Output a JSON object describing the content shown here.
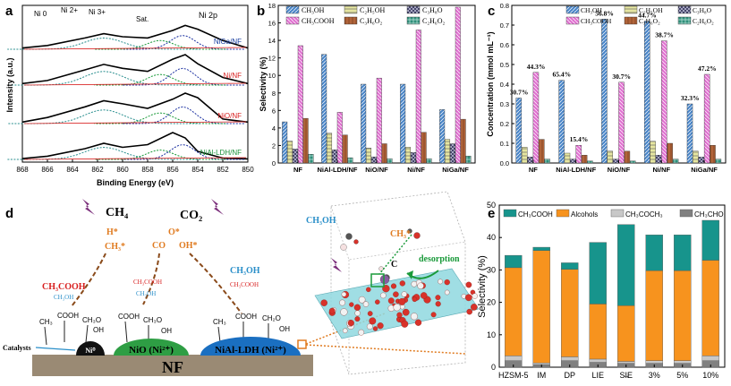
{
  "panel_labels": {
    "a": "a",
    "b": "b",
    "c": "c",
    "d": "d",
    "e": "e"
  },
  "colors": {
    "CH3OH": "#4a86c8",
    "C2H5OH": "#e6e6a0",
    "C3H8O": "#33335a",
    "CH3COOH": "#e070d0",
    "C3H6O2": "#b0643a",
    "C2H6O2": "#2f8f7a",
    "e_CH3COOH": "#17948c",
    "e_Alcohols": "#f7931e",
    "e_CH3COCH3": "#c8c8c8",
    "e_CH3CHO": "#808080",
    "nf_base": "#9a8a74",
    "ni0": "#111111",
    "nio": "#2e9e44",
    "nial": "#1a6fc1",
    "methane_orange": "#e07b20",
    "red_text": "#d81e1e",
    "blue_text": "#2a8fc9"
  },
  "chart_data": [
    {
      "id": "a",
      "type": "line",
      "title": "Ni 2p",
      "xlabel": "Binding Energy (eV)",
      "ylabel": "Intensity (a.u.)",
      "xlim": [
        868,
        850
      ],
      "xticks": [
        850,
        852,
        854,
        856,
        858,
        860,
        862,
        864,
        866,
        868
      ],
      "peak_labels": [
        "Ni 0",
        "Ni 2+",
        "Ni 3+",
        "Sat."
      ],
      "series": [
        {
          "name": "NiGa/NF",
          "x": [
            850,
            852,
            854,
            855,
            856,
            858,
            860,
            861.5,
            863,
            866,
            868
          ],
          "values": [
            0.05,
            0.35,
            0.8,
            0.95,
            0.75,
            0.45,
            0.5,
            0.62,
            0.45,
            0.15,
            0.05
          ]
        },
        {
          "name": "Ni/NF",
          "x": [
            850,
            852,
            854,
            855,
            856,
            858,
            860,
            861.5,
            863,
            866,
            868
          ],
          "values": [
            0.05,
            0.25,
            0.7,
            1.0,
            0.85,
            0.45,
            0.55,
            0.68,
            0.5,
            0.15,
            0.05
          ]
        },
        {
          "name": "NiO/NF",
          "x": [
            850,
            852,
            854,
            855,
            856,
            858,
            860,
            861.5,
            863,
            866,
            868
          ],
          "values": [
            0.05,
            0.15,
            0.85,
            1.0,
            0.8,
            0.5,
            0.65,
            0.75,
            0.55,
            0.2,
            0.05
          ]
        },
        {
          "name": "NiAl-LDH/NF",
          "x": [
            850,
            852,
            854,
            855,
            856,
            858,
            860,
            861.5,
            863,
            866,
            868
          ],
          "values": [
            0.02,
            0.05,
            0.3,
            0.8,
            1.0,
            0.55,
            0.45,
            0.6,
            0.4,
            0.12,
            0.03
          ]
        }
      ]
    },
    {
      "id": "b",
      "type": "bar",
      "ylabel": "Selectivity (%)",
      "ylim": [
        0,
        18
      ],
      "yticks": [
        0,
        2,
        4,
        6,
        8,
        10,
        12,
        14,
        16,
        18
      ],
      "categories": [
        "NF",
        "NiAl-LDH/NF",
        "NiO/NF",
        "Ni/NF",
        "NiGa/NF"
      ],
      "series": [
        {
          "name": "CH3OH",
          "label": "CH₃OH",
          "values": [
            4.7,
            12.4,
            9.0,
            9.0,
            6.1
          ]
        },
        {
          "name": "C2H5OH",
          "label": "C₂H₅OH",
          "values": [
            2.5,
            3.4,
            1.7,
            1.8,
            2.7
          ]
        },
        {
          "name": "C3H8O",
          "label": "C₃H₈O",
          "values": [
            1.6,
            1.5,
            0.7,
            1.2,
            2.2
          ]
        },
        {
          "name": "CH3COOH",
          "label": "CH₃COOH",
          "values": [
            13.4,
            5.8,
            9.7,
            15.2,
            17.8
          ]
        },
        {
          "name": "C3H6O2",
          "label": "C₃H₆O₂",
          "values": [
            5.1,
            3.2,
            2.2,
            3.5,
            5.0
          ]
        },
        {
          "name": "C2H6O2",
          "label": "C₂H₆O₂",
          "values": [
            1.0,
            0.6,
            0.5,
            0.5,
            0.8
          ]
        }
      ]
    },
    {
      "id": "c",
      "type": "bar",
      "ylabel": "Concentration (mmol mL⁻¹)",
      "ylim": [
        0.0,
        0.8
      ],
      "yticks": [
        0.0,
        0.1,
        0.2,
        0.3,
        0.4,
        0.5,
        0.6,
        0.7,
        0.8
      ],
      "categories": [
        "NF",
        "NiAl-LDH/NF",
        "NiO/NF",
        "Ni/NF",
        "NiGa/NF"
      ],
      "series": [
        {
          "name": "CH3OH",
          "label": "CH₃OH",
          "values": [
            0.33,
            0.42,
            0.73,
            0.72,
            0.3
          ]
        },
        {
          "name": "C2H5OH",
          "label": "C₂H₅OH",
          "values": [
            0.08,
            0.05,
            0.06,
            0.11,
            0.06
          ]
        },
        {
          "name": "C3H8O",
          "label": "C₃H₈O",
          "values": [
            0.03,
            0.02,
            0.02,
            0.04,
            0.03
          ]
        },
        {
          "name": "CH3COOH",
          "label": "CH₃COOH",
          "values": [
            0.46,
            0.09,
            0.41,
            0.62,
            0.45
          ]
        },
        {
          "name": "C3H6O2",
          "label": "C₃H₆O₂",
          "values": [
            0.12,
            0.04,
            0.06,
            0.1,
            0.09
          ]
        },
        {
          "name": "C2H6O2",
          "label": "C₂H₆O₂",
          "values": [
            0.02,
            0.01,
            0.01,
            0.02,
            0.02
          ]
        }
      ],
      "annotations": [
        {
          "text": "30.7%",
          "category": "NF",
          "series": "CH3OH"
        },
        {
          "text": "44.3%",
          "category": "NF",
          "series": "CH3COOH"
        },
        {
          "text": "65.4%",
          "category": "NiAl-LDH/NF",
          "series": "CH3OH"
        },
        {
          "text": "15.4%",
          "category": "NiAl-LDH/NF",
          "series": "CH3COOH"
        },
        {
          "text": "56.8%",
          "category": "NiO/NF",
          "series": "CH3OH"
        },
        {
          "text": "30.7%",
          "category": "NiO/NF",
          "series": "CH3COOH"
        },
        {
          "text": "44.7%",
          "category": "Ni/NF",
          "series": "CH3OH"
        },
        {
          "text": "38.7%",
          "category": "Ni/NF",
          "series": "CH3COOH"
        },
        {
          "text": "32.3%",
          "category": "NiGa/NF",
          "series": "CH3OH"
        },
        {
          "text": "47.2%",
          "category": "NiGa/NF",
          "series": "CH3COOH"
        }
      ]
    },
    {
      "id": "e",
      "type": "bar",
      "stacked": true,
      "ylabel": "Selectivity (%)",
      "ylim": [
        0,
        50
      ],
      "yticks": [
        0,
        10,
        20,
        30,
        40,
        50
      ],
      "categories": [
        "HZSM-5",
        "IM",
        "DP",
        "LIE",
        "SIE",
        "3%",
        "5%",
        "10%"
      ],
      "arrow_label": "→",
      "series": [
        {
          "name": "CH3CHO",
          "label": "CH₃CHO",
          "values": [
            2.0,
            0.8,
            2.0,
            1.5,
            1.2,
            1.2,
            1.2,
            2.0
          ]
        },
        {
          "name": "CH3COCH3",
          "label": "CH₃COCH₃",
          "values": [
            1.5,
            0.5,
            1.2,
            1.0,
            0.6,
            0.8,
            0.8,
            1.5
          ]
        },
        {
          "name": "Alcohols",
          "label": "Alcohols",
          "values": [
            27.2,
            34.7,
            27.0,
            17.0,
            17.2,
            27.8,
            27.8,
            29.5
          ]
        },
        {
          "name": "CH3COOH",
          "label": "CH₃COOH",
          "values": [
            3.8,
            1.0,
            2.0,
            19.0,
            25.0,
            11.0,
            11.0,
            12.3
          ]
        }
      ]
    }
  ],
  "schematic": {
    "ch4": "CH₄",
    "co2": "CO₂",
    "h_star": "H*",
    "ch3_star": "CH₃*",
    "o_star": "O*",
    "co": "CO",
    "oh_star": "OH*",
    "left_acid": "CH₃COOH",
    "left_alcohol": "CH₃OH",
    "mid_acid": "CH₃COOH",
    "mid_alcohol": "CH₃OH",
    "right_alcohol": "CH₃OH",
    "right_acid": "CH₃COOH",
    "surface_groups": [
      "CH₃",
      "COOH",
      "CH₃O",
      "OH",
      "COOH",
      "CH₃O",
      "OH",
      "CH₃",
      "COOH",
      "CH₂O",
      "OH"
    ],
    "catalysts_label": "Catalysts",
    "ni0": "Ni⁰",
    "nio": "NiO (Ni²⁺)",
    "nial": "NiAl-LDH (Ni²⁺)",
    "nf": "NF",
    "crystal_ch3oh": "CH₃OH",
    "crystal_ch3": "CH₃*",
    "crystal_c": "C",
    "desorption": "desorption"
  }
}
